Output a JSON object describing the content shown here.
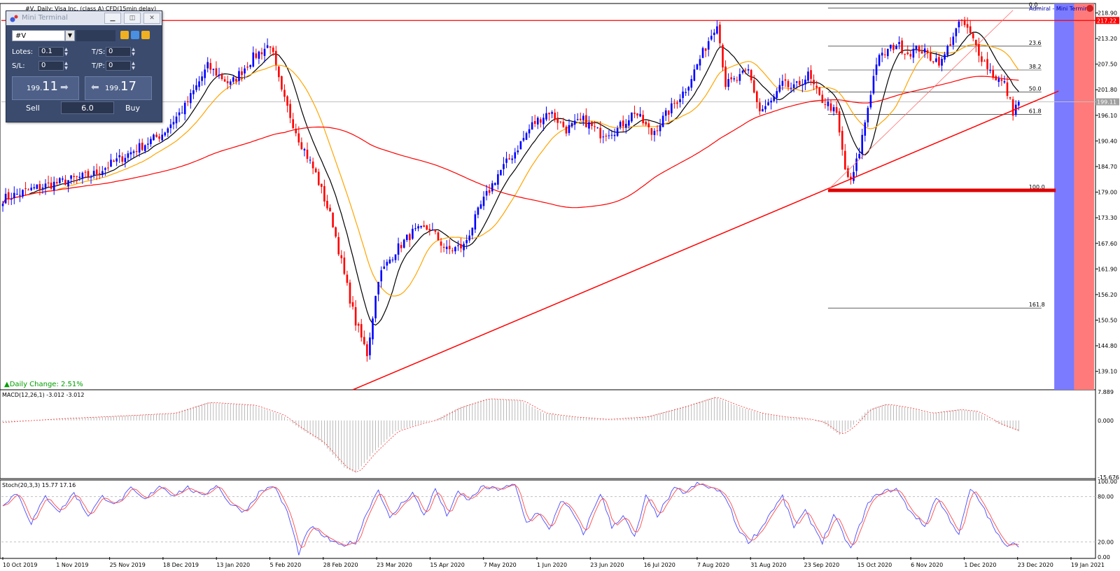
{
  "chart_header": {
    "symbol_line": "#V, Daily:  Visa Inc. (class A) CFD(15min delay)",
    "terminal_brand": "Admiral - Mini Terminal"
  },
  "daily_change": "▲Daily Change: 2.51%",
  "mini_terminal": {
    "title": "Mini Terminal",
    "symbol": "#V",
    "lots_label": "Lotes:",
    "lots_value": "0.1",
    "sl_label": "S/L:",
    "sl_value": "0",
    "ts_label": "T/S:",
    "ts_value": "0",
    "tp_label": "T/P:",
    "tp_value": "0",
    "sell_price_small": "199.",
    "sell_price_big": "11",
    "buy_price_small": "199.",
    "buy_price_big": "17",
    "sell_label": "Sell",
    "buy_label": "Buy",
    "volume": "6.0"
  },
  "colors": {
    "bull": "#0000ff",
    "bear": "#ff0000",
    "ma_fast": "#000000",
    "ma_mid": "#ffa500",
    "ma_slow": "#ff0000",
    "trendline": "#ff0000",
    "fib": "#000000",
    "zone_blue": "#7b7bff",
    "zone_red": "#ff7b7b"
  },
  "chart_data": [
    {
      "type": "candlestick",
      "title": "#V, Daily:  Visa Inc. (class A) CFD(15min delay)",
      "ylim": [
        135.0,
        221.0
      ],
      "y_ticks": [
        "218.90",
        "213.20",
        "207.50",
        "201.80",
        "196.10",
        "190.40",
        "184.70",
        "179.00",
        "173.30",
        "167.60",
        "161.90",
        "156.20",
        "150.50",
        "144.80",
        "139.10"
      ],
      "x_ticks": [
        "10 Oct 2019",
        "1 Nov 2019",
        "25 Nov 2019",
        "18 Dec 2019",
        "13 Jan 2020",
        "5 Feb 2020",
        "28 Feb 2020",
        "23 Mar 2020",
        "15 Apr 2020",
        "7 May 2020",
        "1 Jun 2020",
        "23 Jun 2020",
        "16 Jul 2020",
        "7 Aug 2020",
        "31 Aug 2020",
        "23 Sep 2020",
        "15 Oct 2020",
        "6 Nov 2020",
        "1 Dec 2020",
        "23 Dec 2020",
        "19 Jan 2021"
      ],
      "price_tags": [
        {
          "label": "217.22",
          "value": 217.22,
          "color": "#ff0000"
        },
        {
          "label": "199.11",
          "value": 199.11,
          "color": "#a0a0a0"
        }
      ],
      "fib_levels": [
        {
          "label": "0.0",
          "value": 220.0
        },
        {
          "label": "23.6",
          "value": 211.5
        },
        {
          "label": "38.2",
          "value": 206.2
        },
        {
          "label": "50.0",
          "value": 201.3
        },
        {
          "label": "61.8",
          "value": 196.3
        },
        {
          "label": "100.0",
          "value": 179.4
        },
        {
          "label": "161.8",
          "value": 153.2
        }
      ],
      "close_anchors": [
        [
          0,
          177.5
        ],
        [
          12,
          180.0
        ],
        [
          22,
          181.5
        ],
        [
          32,
          183.0
        ],
        [
          40,
          186.0
        ],
        [
          48,
          189.0
        ],
        [
          56,
          192.0
        ],
        [
          64,
          198.0
        ],
        [
          72,
          207.0
        ],
        [
          80,
          203.0
        ],
        [
          88,
          209.0
        ],
        [
          94,
          212.0
        ],
        [
          98,
          201.0
        ],
        [
          104,
          191.0
        ],
        [
          110,
          183.0
        ],
        [
          116,
          172.0
        ],
        [
          120,
          160.5
        ],
        [
          124,
          150.0
        ],
        [
          128,
          143.0
        ],
        [
          132,
          160.0
        ],
        [
          138,
          166.0
        ],
        [
          144,
          170.0
        ],
        [
          150,
          171.0
        ],
        [
          156,
          166.0
        ],
        [
          162,
          167.0
        ],
        [
          168,
          176.0
        ],
        [
          174,
          183.0
        ],
        [
          180,
          188.0
        ],
        [
          186,
          194.0
        ],
        [
          192,
          197.0
        ],
        [
          198,
          193.0
        ],
        [
          204,
          195.0
        ],
        [
          210,
          192.0
        ],
        [
          216,
          193.0
        ],
        [
          222,
          197.0
        ],
        [
          228,
          192.0
        ],
        [
          234,
          197.0
        ],
        [
          240,
          202.0
        ],
        [
          246,
          210.0
        ],
        [
          251,
          217.0
        ],
        [
          254,
          203.0
        ],
        [
          258,
          204.0
        ],
        [
          262,
          206.0
        ],
        [
          266,
          197.0
        ],
        [
          270,
          199.0
        ],
        [
          274,
          203.0
        ],
        [
          278,
          202.0
        ],
        [
          283,
          205.0
        ],
        [
          287,
          200.0
        ],
        [
          291,
          198.0
        ],
        [
          293,
          196.0
        ],
        [
          296,
          184.0
        ],
        [
          298,
          181.0
        ],
        [
          301,
          188.0
        ],
        [
          304,
          198.0
        ],
        [
          307,
          208.0
        ],
        [
          310,
          210.0
        ],
        [
          314,
          212.0
        ],
        [
          318,
          210.0
        ],
        [
          322,
          211.0
        ],
        [
          326,
          209.0
        ],
        [
          330,
          208.0
        ],
        [
          334,
          214.0
        ],
        [
          337,
          217.0
        ],
        [
          340,
          214.0
        ],
        [
          344,
          209.0
        ],
        [
          348,
          205.0
        ],
        [
          352,
          203.0
        ],
        [
          355,
          197.0
        ],
        [
          357,
          199.1
        ]
      ],
      "moving_averages": [
        {
          "name": "MA-fast",
          "period": 10,
          "color": "#000000"
        },
        {
          "name": "MA-mid",
          "period": 20,
          "color": "#ffa500"
        },
        {
          "name": "MA-slow",
          "period": 100,
          "color": "#ff0000"
        }
      ],
      "trendlines": [
        {
          "from": [
            123,
            135.0
          ],
          "to": [
            371,
            201.5
          ],
          "color": "#ff0000",
          "width": 1.5
        },
        {
          "from": [
            290,
            179.5
          ],
          "to": [
            355,
            219.5
          ],
          "color": "#ff6a6a",
          "width": 0.8
        }
      ],
      "support_line": {
        "value": 179.4,
        "from_index": 290,
        "to_index": 370,
        "color": "#dd0000"
      },
      "shaded_zones": [
        {
          "from_index": 370,
          "to_index": 376,
          "color": "#7b7bff"
        },
        {
          "from_index": 377,
          "to_index": 383,
          "color": "#ff7b7b"
        }
      ]
    },
    {
      "type": "histogram",
      "title": "MACD(12,26,1) -3.012 -3.012",
      "ylim": [
        -15.676,
        7.889
      ],
      "y_ticks": [
        "7.889",
        "0.000",
        "-15.676"
      ],
      "series": [
        {
          "name": "MACD(12,26,1)",
          "last": -3.012
        },
        {
          "name": "Signal",
          "last": -3.012
        }
      ],
      "value_anchors": [
        [
          0,
          -0.5
        ],
        [
          20,
          0.5
        ],
        [
          40,
          1.2
        ],
        [
          60,
          2.0
        ],
        [
          72,
          5.0
        ],
        [
          88,
          4.2
        ],
        [
          98,
          1.5
        ],
        [
          104,
          -2.0
        ],
        [
          112,
          -6.0
        ],
        [
          120,
          -13.0
        ],
        [
          124,
          -14.5
        ],
        [
          130,
          -9.0
        ],
        [
          138,
          -3.0
        ],
        [
          146,
          -1.0
        ],
        [
          152,
          0.2
        ],
        [
          160,
          3.5
        ],
        [
          170,
          6.0
        ],
        [
          182,
          5.5
        ],
        [
          190,
          2.0
        ],
        [
          200,
          1.0
        ],
        [
          212,
          0.3
        ],
        [
          226,
          1.0
        ],
        [
          240,
          4.0
        ],
        [
          250,
          6.5
        ],
        [
          258,
          4.0
        ],
        [
          266,
          2.0
        ],
        [
          274,
          1.0
        ],
        [
          282,
          0.5
        ],
        [
          288,
          -0.5
        ],
        [
          294,
          -4.0
        ],
        [
          298,
          -2.0
        ],
        [
          304,
          3.0
        ],
        [
          310,
          4.5
        ],
        [
          318,
          3.5
        ],
        [
          326,
          2.0
        ],
        [
          336,
          3.0
        ],
        [
          342,
          2.5
        ],
        [
          350,
          -1.0
        ],
        [
          357,
          -3.012
        ]
      ]
    },
    {
      "type": "line",
      "title": "Stoch(20,3,3) 15.77 17.16",
      "ylim": [
        0,
        100
      ],
      "y_ticks": [
        "100.00",
        "80.00",
        "20.00",
        "0.00"
      ],
      "series": [
        {
          "name": "Main",
          "color": "#4a4aff",
          "last": 15.77
        },
        {
          "name": "Signal",
          "color": "#ff4a4a",
          "last": 17.16
        }
      ],
      "value_anchors": [
        [
          0,
          70
        ],
        [
          5,
          85
        ],
        [
          10,
          45
        ],
        [
          15,
          80
        ],
        [
          20,
          60
        ],
        [
          25,
          85
        ],
        [
          30,
          55
        ],
        [
          35,
          80
        ],
        [
          40,
          70
        ],
        [
          45,
          90
        ],
        [
          50,
          75
        ],
        [
          55,
          95
        ],
        [
          60,
          82
        ],
        [
          65,
          92
        ],
        [
          70,
          80
        ],
        [
          75,
          96
        ],
        [
          80,
          70
        ],
        [
          85,
          60
        ],
        [
          90,
          85
        ],
        [
          95,
          95
        ],
        [
          100,
          60
        ],
        [
          104,
          5
        ],
        [
          108,
          40
        ],
        [
          112,
          30
        ],
        [
          118,
          15
        ],
        [
          124,
          20
        ],
        [
          128,
          60
        ],
        [
          132,
          90
        ],
        [
          136,
          50
        ],
        [
          140,
          70
        ],
        [
          144,
          85
        ],
        [
          148,
          55
        ],
        [
          152,
          90
        ],
        [
          156,
          55
        ],
        [
          160,
          85
        ],
        [
          164,
          75
        ],
        [
          168,
          92
        ],
        [
          174,
          90
        ],
        [
          180,
          95
        ],
        [
          184,
          45
        ],
        [
          188,
          60
        ],
        [
          192,
          35
        ],
        [
          196,
          75
        ],
        [
          200,
          60
        ],
        [
          204,
          30
        ],
        [
          210,
          85
        ],
        [
          214,
          40
        ],
        [
          218,
          55
        ],
        [
          222,
          25
        ],
        [
          226,
          80
        ],
        [
          230,
          55
        ],
        [
          236,
          90
        ],
        [
          240,
          85
        ],
        [
          244,
          97
        ],
        [
          250,
          90
        ],
        [
          254,
          80
        ],
        [
          258,
          40
        ],
        [
          262,
          20
        ],
        [
          266,
          35
        ],
        [
          270,
          60
        ],
        [
          274,
          80
        ],
        [
          278,
          40
        ],
        [
          282,
          60
        ],
        [
          288,
          20
        ],
        [
          292,
          55
        ],
        [
          298,
          10
        ],
        [
          304,
          70
        ],
        [
          308,
          85
        ],
        [
          314,
          90
        ],
        [
          318,
          65
        ],
        [
          324,
          40
        ],
        [
          328,
          80
        ],
        [
          332,
          55
        ],
        [
          336,
          30
        ],
        [
          340,
          90
        ],
        [
          344,
          70
        ],
        [
          348,
          40
        ],
        [
          352,
          15
        ],
        [
          355,
          20
        ],
        [
          357,
          16
        ]
      ]
    }
  ]
}
